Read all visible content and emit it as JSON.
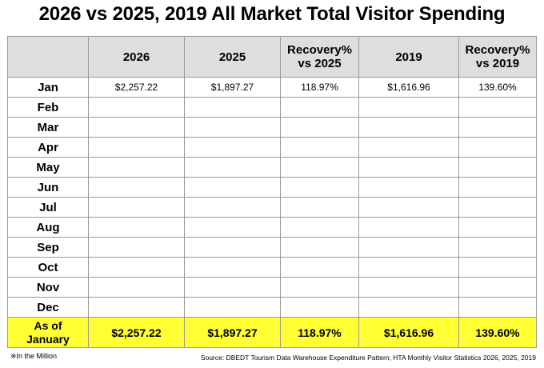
{
  "title": "2026 vs 2025, 2019 All Market Total Visitor Spending",
  "header": {
    "corner": "",
    "col_2026": "2026",
    "col_2025": "2025",
    "col_recovery_2025_line1": "Recovery%",
    "col_recovery_2025_line2": "vs 2025",
    "col_2019": "2019",
    "col_recovery_2019_line1": "Recovery%",
    "col_recovery_2019_line2": "vs 2019"
  },
  "rows": [
    {
      "month": "Jan",
      "v2026": "$2,257.22",
      "v2025": "$1,897.27",
      "rec2025": "118.97%",
      "v2019": "$1,616.96",
      "rec2019": "139.60%"
    },
    {
      "month": "Feb",
      "v2026": "",
      "v2025": "",
      "rec2025": "",
      "v2019": "",
      "rec2019": ""
    },
    {
      "month": "Mar",
      "v2026": "",
      "v2025": "",
      "rec2025": "",
      "v2019": "",
      "rec2019": ""
    },
    {
      "month": "Apr",
      "v2026": "",
      "v2025": "",
      "rec2025": "",
      "v2019": "",
      "rec2019": ""
    },
    {
      "month": "May",
      "v2026": "",
      "v2025": "",
      "rec2025": "",
      "v2019": "",
      "rec2019": ""
    },
    {
      "month": "Jun",
      "v2026": "",
      "v2025": "",
      "rec2025": "",
      "v2019": "",
      "rec2019": ""
    },
    {
      "month": "Jul",
      "v2026": "",
      "v2025": "",
      "rec2025": "",
      "v2019": "",
      "rec2019": ""
    },
    {
      "month": "Aug",
      "v2026": "",
      "v2025": "",
      "rec2025": "",
      "v2019": "",
      "rec2019": ""
    },
    {
      "month": "Sep",
      "v2026": "",
      "v2025": "",
      "rec2025": "",
      "v2019": "",
      "rec2019": ""
    },
    {
      "month": "Oct",
      "v2026": "",
      "v2025": "",
      "rec2025": "",
      "v2019": "",
      "rec2019": ""
    },
    {
      "month": "Nov",
      "v2026": "",
      "v2025": "",
      "rec2025": "",
      "v2019": "",
      "rec2019": ""
    },
    {
      "month": "Dec",
      "v2026": "",
      "v2025": "",
      "rec2025": "",
      "v2019": "",
      "rec2019": ""
    }
  ],
  "total": {
    "label_line1": "As of",
    "label_line2": "January",
    "v2026": "$2,257.22",
    "v2025": "$1,897.27",
    "rec2025": "118.97%",
    "v2019": "$1,616.96",
    "rec2019": "139.60%"
  },
  "note": "※In the Million",
  "source": "Source: DBEDT Tourism Data Warehouse Expenditure Pattern; HTA Monthly Visitor Statistics 2026, 2025, 2019",
  "colors": {
    "header_bg": "#dedede",
    "total_bg": "#ffff33",
    "border": "#9a9a9a"
  }
}
